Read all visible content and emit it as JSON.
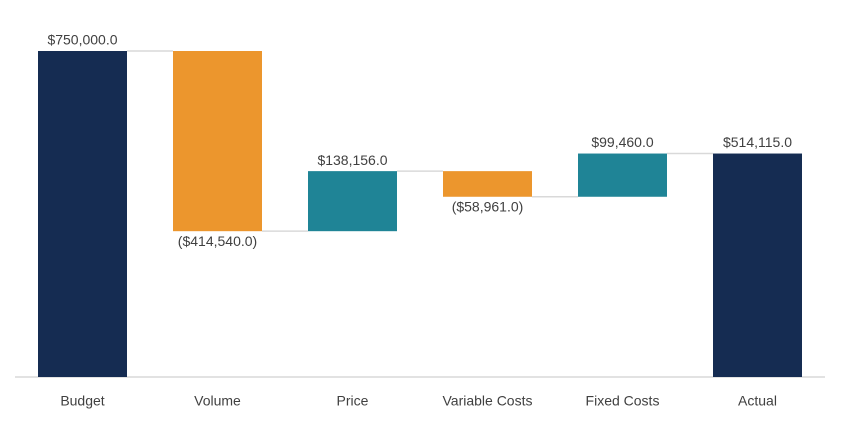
{
  "chart_data": {
    "type": "waterfall",
    "categories": [
      "Budget",
      "Volume",
      "Price",
      "Variable Costs",
      "Fixed Costs",
      "Actual"
    ],
    "values": [
      750000,
      -414540,
      138156,
      -58961,
      99460,
      514115
    ],
    "value_labels": [
      "$750,000.0",
      "($414,540.0)",
      "$138,156.0",
      "($58,961.0)",
      "$99,460.0",
      "$514,115.0"
    ],
    "is_total": [
      true,
      false,
      false,
      false,
      false,
      true
    ],
    "colors": [
      "#152c52",
      "#ec962d",
      "#1f8496",
      "#ec962d",
      "#1f8496",
      "#152c52"
    ]
  }
}
